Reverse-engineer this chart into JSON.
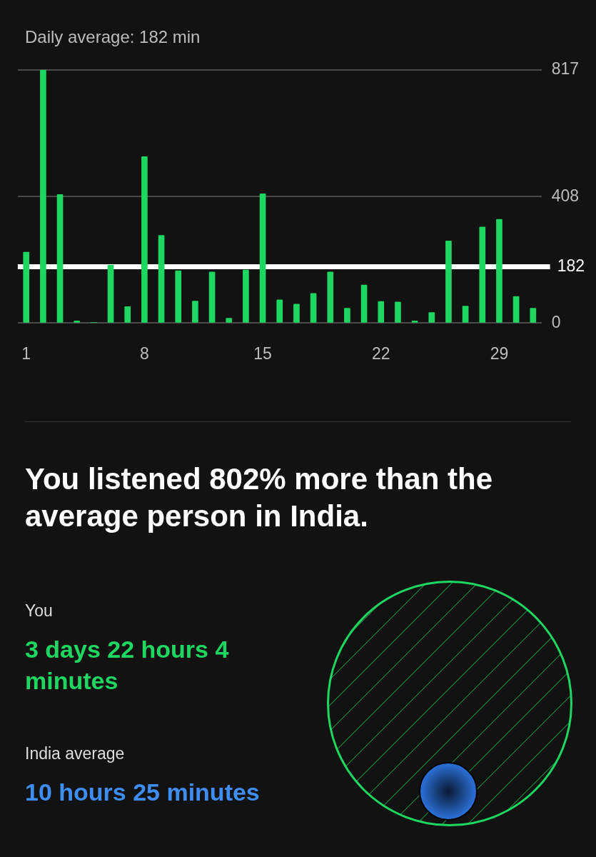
{
  "chart_data": {
    "type": "bar",
    "title": "Daily average: 182 min",
    "categories": [
      "1",
      null,
      null,
      null,
      null,
      null,
      null,
      "8",
      null,
      null,
      null,
      null,
      null,
      null,
      "15",
      null,
      null,
      null,
      null,
      null,
      null,
      "22",
      null,
      null,
      null,
      null,
      null,
      null,
      "29",
      null,
      null
    ],
    "values": [
      229,
      817,
      415,
      7,
      2,
      187,
      53,
      537,
      283,
      169,
      71,
      165,
      16,
      171,
      417,
      75,
      61,
      96,
      165,
      48,
      123,
      70,
      68,
      7,
      34,
      265,
      55,
      310,
      335,
      86,
      48
    ],
    "color": "#1ed760",
    "ylim": [
      0,
      817
    ],
    "yticks": [
      0,
      408,
      817
    ],
    "grid": "y",
    "ref_lines": [
      {
        "axis": "y",
        "value": 182,
        "label": "182",
        "color": "#ffffff"
      }
    ],
    "annotations": [
      "You listened 802% more than the average person in India.",
      "You",
      "3 days 22 hours 4 minutes",
      "India average",
      "10 hours 25 minutes"
    ]
  }
}
